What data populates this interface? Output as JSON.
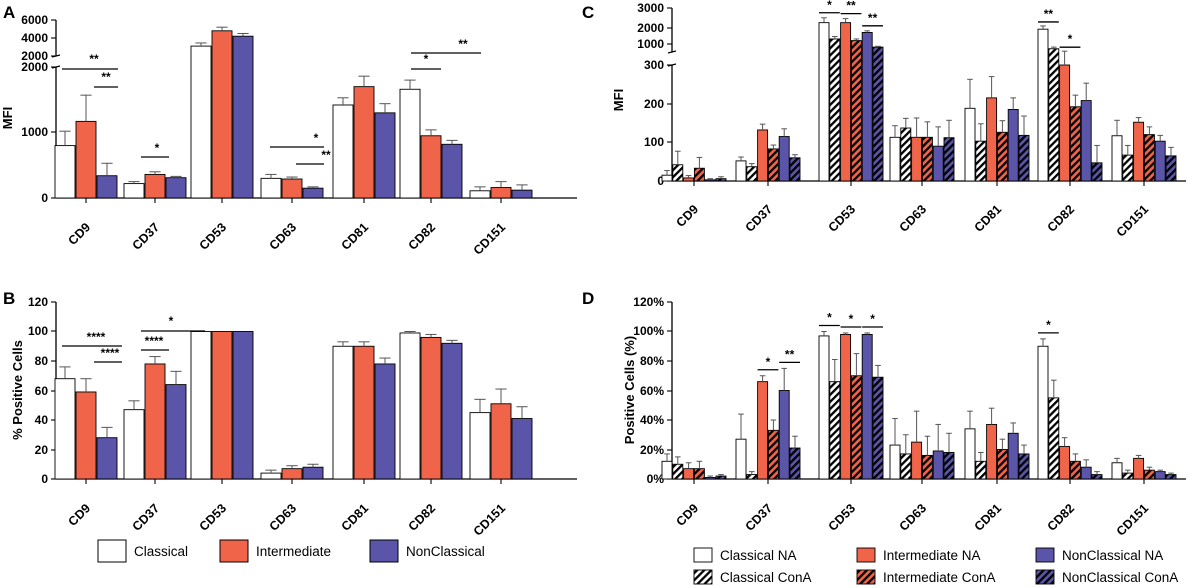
{
  "colors": {
    "classical": "#ffffff",
    "intermediate": "#f0644a",
    "nonclassical": "#5a55a8",
    "outline": "#000000",
    "error": "#555555"
  },
  "legend_ab": [
    "Classical",
    "Intermediate",
    "NonClassical"
  ],
  "legend_cd": [
    "Classical NA",
    "Intermediate NA",
    "NonClassical NA",
    "Classical ConA",
    "Intermediate ConA",
    "NonClassical ConA"
  ],
  "chart_data": [
    {
      "panel": "A",
      "type": "bar",
      "ylabel": "MFI",
      "categories": [
        "CD9",
        "CD37",
        "CD53",
        "CD63",
        "CD81",
        "CD82",
        "CD151"
      ],
      "ylim_lower": [
        0,
        2000
      ],
      "ylim_upper": [
        2000,
        6000
      ],
      "yticks_lower": [
        "0",
        "1000",
        "2000"
      ],
      "yticks_upper": [
        "2000",
        "4000",
        "6000"
      ],
      "series": [
        {
          "name": "Classical",
          "values": [
            800,
            220,
            3100,
            300,
            1420,
            1660,
            110
          ],
          "errors": [
            220,
            30,
            350,
            60,
            110,
            140,
            60
          ]
        },
        {
          "name": "Intermediate",
          "values": [
            1170,
            360,
            4800,
            290,
            1700,
            950,
            160
          ],
          "errors": [
            400,
            40,
            400,
            30,
            160,
            90,
            90
          ]
        },
        {
          "name": "NonClassical",
          "values": [
            340,
            310,
            4200,
            150,
            1300,
            820,
            120
          ],
          "errors": [
            190,
            20,
            300,
            20,
            140,
            60,
            80
          ]
        }
      ],
      "significance": [
        {
          "category": "CD9",
          "label": "**",
          "from": 0,
          "to": 2
        },
        {
          "category": "CD9",
          "label": "**",
          "from": 1,
          "to": 2
        },
        {
          "category": "CD37",
          "label": "*",
          "from": 0,
          "to": 1
        },
        {
          "category": "CD63",
          "label": "*",
          "from": 0,
          "to": 2
        },
        {
          "category": "CD63",
          "label": "**",
          "from": 1,
          "to": 2
        },
        {
          "category": "CD82",
          "label": "*",
          "from": 0,
          "to": 1
        },
        {
          "category": "CD82",
          "label": "**",
          "from": 0,
          "to": 2
        }
      ]
    },
    {
      "panel": "B",
      "type": "bar",
      "ylabel": "% Positive Cells",
      "categories": [
        "CD9",
        "CD37",
        "CD53",
        "CD63",
        "CD81",
        "CD82",
        "CD151"
      ],
      "ylim": [
        0,
        120
      ],
      "yticks": [
        "0",
        "20",
        "40",
        "60",
        "80",
        "100",
        "120"
      ],
      "series": [
        {
          "name": "Classical",
          "values": [
            68,
            47,
            100,
            4,
            90,
            99,
            45
          ],
          "errors": [
            8,
            6,
            0,
            2,
            3,
            1,
            9
          ]
        },
        {
          "name": "Intermediate",
          "values": [
            59,
            78,
            100,
            7,
            90,
            96,
            51
          ],
          "errors": [
            9,
            5,
            0,
            2,
            3,
            2,
            10
          ]
        },
        {
          "name": "NonClassical",
          "values": [
            28,
            64,
            100,
            8,
            78,
            92,
            41
          ],
          "errors": [
            7,
            9,
            0,
            2,
            4,
            2,
            8
          ]
        }
      ],
      "significance": [
        {
          "category": "CD9",
          "label": "****",
          "from": 0,
          "to": 2
        },
        {
          "category": "CD9",
          "label": "****",
          "from": 1,
          "to": 2
        },
        {
          "category": "CD37",
          "label": "****",
          "from": 0,
          "to": 1
        },
        {
          "category": "CD37",
          "label": "*",
          "from": 0,
          "to": 2
        }
      ]
    },
    {
      "panel": "C",
      "type": "bar",
      "ylabel": "MFI",
      "categories": [
        "CD9",
        "CD37",
        "CD53",
        "CD63",
        "CD81",
        "CD82",
        "CD151"
      ],
      "ylim_lower": [
        0,
        300
      ],
      "ylim_upper": [
        300,
        3000
      ],
      "yticks_lower": [
        "0",
        "100",
        "200",
        "300"
      ],
      "yticks_upper": [
        "1000",
        "2000",
        "3000"
      ],
      "series": [
        {
          "name": "Classical NA",
          "values": [
            15,
            52,
            2100,
            113,
            188,
            1700,
            117
          ],
          "errors": [
            12,
            10,
            300,
            30,
            75,
            200,
            40
          ]
        },
        {
          "name": "Classical ConA",
          "values": [
            42,
            37,
            1100,
            137,
            103,
            500,
            67
          ],
          "errors": [
            35,
            8,
            150,
            25,
            45,
            100,
            25
          ]
        },
        {
          "name": "Intermediate NA",
          "values": [
            8,
            132,
            2100,
            113,
            215,
            300,
            152
          ],
          "errors": [
            6,
            15,
            250,
            50,
            55,
            50,
            12
          ]
        },
        {
          "name": "Intermediate ConA",
          "values": [
            33,
            83,
            1000,
            113,
            126,
            192,
            120
          ],
          "errors": [
            28,
            10,
            100,
            40,
            30,
            30,
            20
          ]
        },
        {
          "name": "NonClassical NA",
          "values": [
            3,
            115,
            1500,
            90,
            185,
            208,
            103
          ],
          "errors": [
            3,
            20,
            100,
            50,
            30,
            45,
            15
          ]
        },
        {
          "name": "NonClassical ConA",
          "values": [
            6,
            60,
            600,
            112,
            118,
            47,
            65
          ],
          "errors": [
            5,
            8,
            50,
            45,
            50,
            45,
            22
          ]
        }
      ],
      "significance": [
        {
          "category": "CD53",
          "label": "*"
        },
        {
          "category": "CD53",
          "label": "**"
        },
        {
          "category": "CD53",
          "label": "**"
        },
        {
          "category": "CD82",
          "label": "**"
        },
        {
          "category": "CD82",
          "label": "*"
        }
      ]
    },
    {
      "panel": "D",
      "type": "bar",
      "ylabel": "Positive Cells (%)",
      "categories": [
        "CD9",
        "CD37",
        "CD53",
        "CD63",
        "CD81",
        "CD82",
        "CD151"
      ],
      "ylim": [
        0,
        120
      ],
      "yticks": [
        "0%",
        "20%",
        "40%",
        "60%",
        "80%",
        "100%",
        "120%"
      ],
      "series": [
        {
          "name": "Classical NA",
          "values": [
            12,
            27,
            97,
            23,
            34,
            90,
            11
          ],
          "errors": [
            5,
            17,
            3,
            18,
            12,
            5,
            3
          ]
        },
        {
          "name": "Classical ConA",
          "values": [
            10,
            3,
            66,
            17,
            12,
            55,
            4
          ],
          "errors": [
            5,
            2,
            15,
            13,
            6,
            12,
            2
          ]
        },
        {
          "name": "Intermediate NA",
          "values": [
            7,
            66,
            98,
            25,
            37,
            22,
            14
          ],
          "errors": [
            4,
            4,
            1,
            21,
            11,
            6,
            2
          ]
        },
        {
          "name": "Intermediate ConA",
          "values": [
            7,
            33,
            70,
            16,
            20,
            12,
            6
          ],
          "errors": [
            5,
            7,
            15,
            13,
            7,
            5,
            2
          ]
        },
        {
          "name": "NonClassical NA",
          "values": [
            1,
            60,
            98,
            19,
            31,
            8,
            5
          ],
          "errors": [
            1,
            15,
            1,
            18,
            7,
            5,
            1
          ]
        },
        {
          "name": "NonClassical ConA",
          "values": [
            2,
            21,
            69,
            18,
            17,
            3,
            3
          ],
          "errors": [
            1,
            8,
            8,
            13,
            6,
            2,
            1
          ]
        }
      ],
      "significance": [
        {
          "category": "CD37",
          "label": "*"
        },
        {
          "category": "CD37",
          "label": "**"
        },
        {
          "category": "CD53",
          "label": "*"
        },
        {
          "category": "CD53",
          "label": "*"
        },
        {
          "category": "CD53",
          "label": "*"
        },
        {
          "category": "CD82",
          "label": "*"
        }
      ]
    }
  ]
}
